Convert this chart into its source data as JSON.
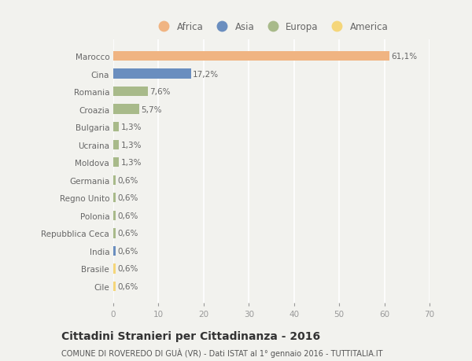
{
  "categories": [
    "Marocco",
    "Cina",
    "Romania",
    "Croazia",
    "Bulgaria",
    "Ucraina",
    "Moldova",
    "Germania",
    "Regno Unito",
    "Polonia",
    "Repubblica Ceca",
    "India",
    "Brasile",
    "Cile"
  ],
  "values": [
    61.1,
    17.2,
    7.6,
    5.7,
    1.3,
    1.3,
    1.3,
    0.6,
    0.6,
    0.6,
    0.6,
    0.6,
    0.6,
    0.6
  ],
  "labels": [
    "61,1%",
    "17,2%",
    "7,6%",
    "5,7%",
    "1,3%",
    "1,3%",
    "1,3%",
    "0,6%",
    "0,6%",
    "0,6%",
    "0,6%",
    "0,6%",
    "0,6%",
    "0,6%"
  ],
  "colors": [
    "#F0B482",
    "#6A8EBF",
    "#A8BA8A",
    "#A8BA8A",
    "#A8BA8A",
    "#A8BA8A",
    "#A8BA8A",
    "#A8BA8A",
    "#A8BA8A",
    "#A8BA8A",
    "#A8BA8A",
    "#6A8EBF",
    "#F5D67A",
    "#F5D67A"
  ],
  "legend_labels": [
    "Africa",
    "Asia",
    "Europa",
    "America"
  ],
  "legend_colors": [
    "#F0B482",
    "#6A8EBF",
    "#A8BA8A",
    "#F5D67A"
  ],
  "xlim": [
    0,
    70
  ],
  "xticks": [
    0,
    10,
    20,
    30,
    40,
    50,
    60,
    70
  ],
  "title": "Cittadini Stranieri per Cittadinanza - 2016",
  "subtitle": "COMUNE DI ROVEREDO DI GUÀ (VR) - Dati ISTAT al 1° gennaio 2016 - TUTTITALIA.IT",
  "background_color": "#F2F2EE",
  "bar_height": 0.55,
  "label_fontsize": 7.5,
  "ytick_fontsize": 7.5,
  "xtick_fontsize": 7.5,
  "title_fontsize": 10,
  "subtitle_fontsize": 7
}
